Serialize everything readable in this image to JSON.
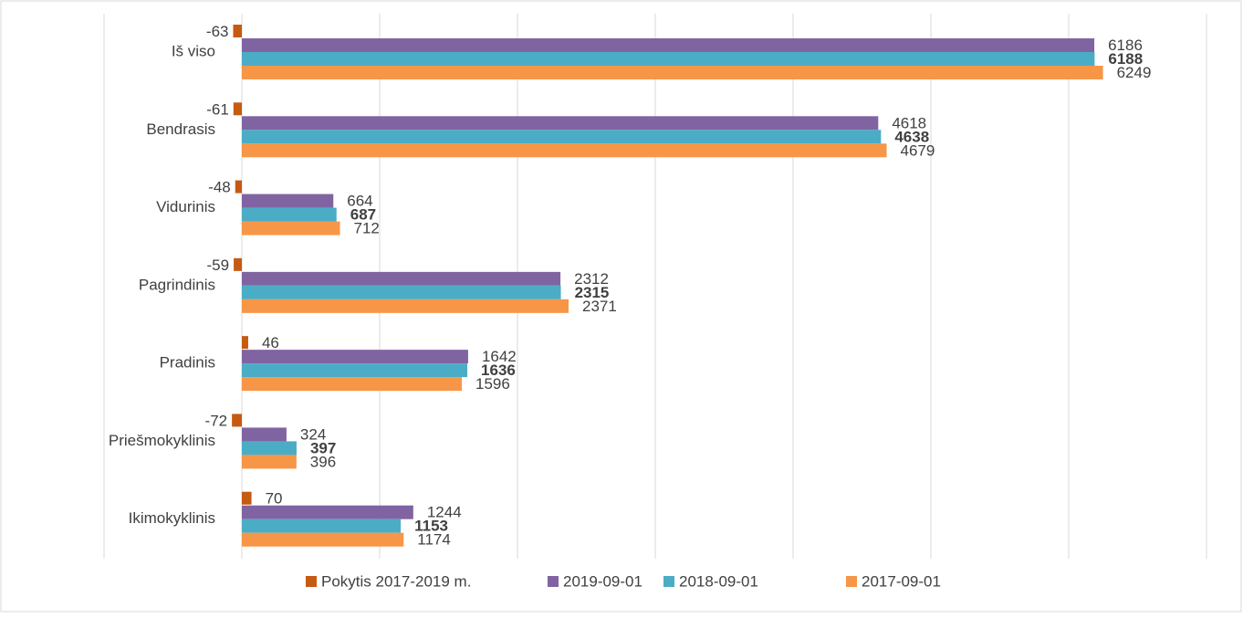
{
  "chart_data": {
    "type": "hbar",
    "categories": [
      "Iš viso",
      "Bendrasis",
      "Vidurinis",
      "Pagrindinis",
      "Pradinis",
      "Priešmokyklinis",
      "Ikimokyklinis"
    ],
    "series": [
      {
        "name": "Pokytis 2017-2019 m.",
        "color": "#c55a11",
        "values": [
          -63,
          -61,
          -48,
          -59,
          46,
          -72,
          70
        ]
      },
      {
        "name": "2019-09-01",
        "color": "#8064a2",
        "values": [
          6186,
          4618,
          664,
          2312,
          1642,
          324,
          1244
        ]
      },
      {
        "name": "2018-09-01",
        "color": "#4bacc6",
        "values": [
          6188,
          4638,
          687,
          2315,
          1636,
          397,
          1153
        ],
        "bold_labels": true
      },
      {
        "name": "2017-09-01",
        "color": "#f79646",
        "values": [
          6249,
          4679,
          712,
          2371,
          1596,
          396,
          1174
        ]
      }
    ],
    "xlim": [
      -1000,
      7000
    ],
    "xticks": [
      -1000,
      0,
      1000,
      2000,
      3000,
      4000,
      5000,
      6000,
      7000
    ],
    "grid": true,
    "legend": "bottom"
  }
}
